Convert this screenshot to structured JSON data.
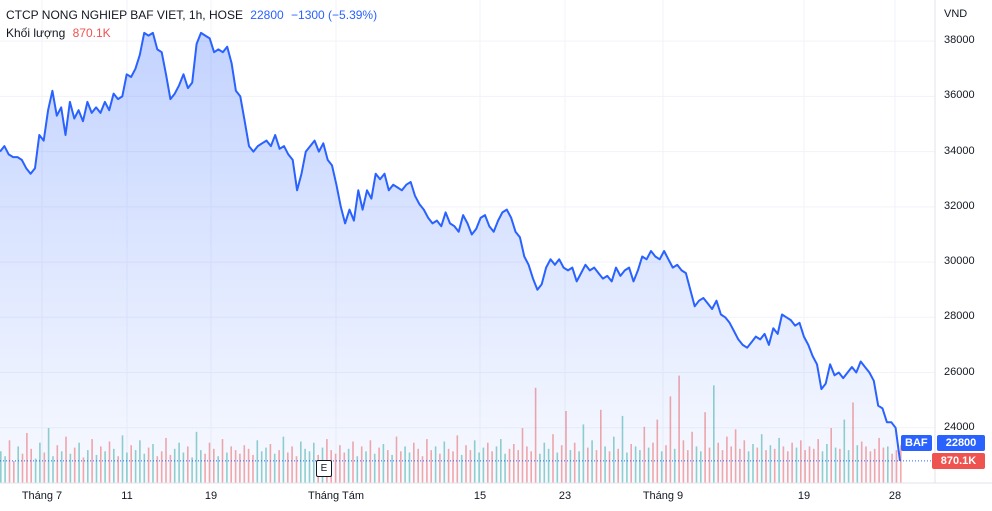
{
  "legend": {
    "symbol": "CTCP NONG NGHIEP BAF VIET, 1h, HOSE",
    "price": "22800",
    "change": "−1300 (−5.39%)",
    "volume_label": "Khối lượng",
    "volume": "870.1K"
  },
  "axis": {
    "currency": "VND"
  },
  "markers": {
    "event": "E"
  },
  "badges": {
    "symbol": "BAF",
    "price": "22800",
    "volume": "870.1K"
  },
  "colors": {
    "line": "#2962ff",
    "volume_up": "#26a69a",
    "volume_down": "#ef5350"
  },
  "chart_data": {
    "type": "area",
    "ylim": [
      22000,
      39200
    ],
    "y_ticks": [
      "24000",
      "26000",
      "28000",
      "30000",
      "32000",
      "34000",
      "36000",
      "38000"
    ],
    "x_ticks": [
      "Tháng 7",
      "11",
      "19",
      "Tháng Tám",
      "15",
      "23",
      "Tháng 9",
      "19",
      "28"
    ],
    "last_price": 22800,
    "last_volume": "870.1K",
    "series": [
      {
        "values": [
          34000,
          34200,
          33900,
          33800,
          33800,
          33700,
          33400,
          33200,
          33400,
          34600,
          34400,
          35500,
          36200,
          35300,
          35600,
          34600,
          35800,
          35200,
          35500,
          35100,
          35800,
          35400,
          35600,
          35400,
          35800,
          35500,
          36100,
          35900,
          36000,
          36800,
          36700,
          37000,
          37500,
          38300,
          38200,
          38300,
          37700,
          37600,
          36800,
          35900,
          36100,
          36400,
          36800,
          36300,
          36500,
          37900,
          38300,
          38200,
          38100,
          37600,
          37700,
          37600,
          37800,
          37200,
          36200,
          36000,
          35100,
          34200,
          34000,
          34200,
          34300,
          34400,
          34200,
          34600,
          34100,
          34200,
          33900,
          33700,
          32600,
          33200,
          34000,
          34200,
          34400,
          34000,
          34300,
          33700,
          33500,
          32800,
          32000,
          31400,
          31900,
          31500,
          32600,
          31900,
          32600,
          32300,
          33200,
          33000,
          33200,
          32600,
          32800,
          32700,
          32600,
          32800,
          32900,
          32400,
          32100,
          31900,
          31600,
          31400,
          31500,
          31300,
          31800,
          31400,
          31300,
          31100,
          31700,
          31400,
          31000,
          31200,
          31600,
          31700,
          31300,
          31100,
          31500,
          31800,
          31900,
          31600,
          31100,
          30900,
          30200,
          29900,
          29400,
          29000,
          29200,
          29800,
          30100,
          29900,
          30100,
          29800,
          29700,
          29800,
          29300,
          29600,
          29900,
          29700,
          29800,
          29600,
          29400,
          29500,
          29300,
          29800,
          29500,
          29700,
          29800,
          29300,
          29700,
          30200,
          30100,
          30400,
          30200,
          30100,
          30400,
          30100,
          29800,
          29900,
          29700,
          29600,
          29000,
          28400,
          28600,
          28700,
          28500,
          28300,
          28600,
          28100,
          28000,
          27800,
          27500,
          27200,
          27000,
          26900,
          27100,
          27300,
          27200,
          27400,
          27000,
          27600,
          27400,
          28100,
          28000,
          27900,
          27700,
          27800,
          27300,
          27000,
          26600,
          26300,
          25400,
          25600,
          26300,
          25900,
          26000,
          25800,
          26000,
          26200,
          26000,
          26400,
          26200,
          26000,
          25700,
          24800,
          24700,
          24200,
          24200,
          24000,
          22800
        ]
      }
    ],
    "volume": [
      26,
      22,
      35,
      18,
      30,
      24,
      41,
      28,
      20,
      33,
      25,
      45,
      22,
      31,
      26,
      38,
      24,
      29,
      33,
      21,
      27,
      36,
      23,
      30,
      26,
      34,
      28,
      22,
      39,
      25,
      31,
      27,
      35,
      24,
      29,
      32,
      22,
      26,
      37,
      23,
      28,
      33,
      25,
      30,
      21,
      42,
      27,
      24,
      33,
      28,
      22,
      36,
      25,
      30,
      27,
      24,
      31,
      28,
      23,
      35,
      26,
      29,
      32,
      24,
      27,
      38,
      25,
      30,
      22,
      34,
      28,
      26,
      33,
      23,
      29,
      36,
      27,
      24,
      31,
      25,
      28,
      34,
      22,
      30,
      26,
      35,
      24,
      29,
      32,
      27,
      23,
      38,
      26,
      30,
      25,
      33,
      28,
      22,
      36,
      27,
      30,
      24,
      34,
      28,
      26,
      39,
      23,
      31,
      27,
      35,
      25,
      29,
      33,
      26,
      30,
      36,
      24,
      28,
      32,
      27,
      45,
      30,
      26,
      78,
      24,
      33,
      28,
      40,
      25,
      31,
      59,
      27,
      33,
      26,
      48,
      29,
      35,
      27,
      60,
      30,
      26,
      38,
      28,
      55,
      25,
      32,
      30,
      27,
      46,
      29,
      33,
      52,
      26,
      31,
      71,
      28,
      88,
      35,
      27,
      42,
      30,
      26,
      58,
      29,
      80,
      33,
      27,
      38,
      30,
      44,
      28,
      35,
      26,
      32,
      29,
      40,
      27,
      31,
      28,
      37,
      30,
      26,
      33,
      29,
      35,
      27,
      30,
      28,
      36,
      26,
      32,
      45,
      29,
      28,
      52,
      27,
      66,
      31,
      34,
      30,
      26,
      28,
      37,
      29,
      30,
      24,
      27,
      31
    ]
  }
}
